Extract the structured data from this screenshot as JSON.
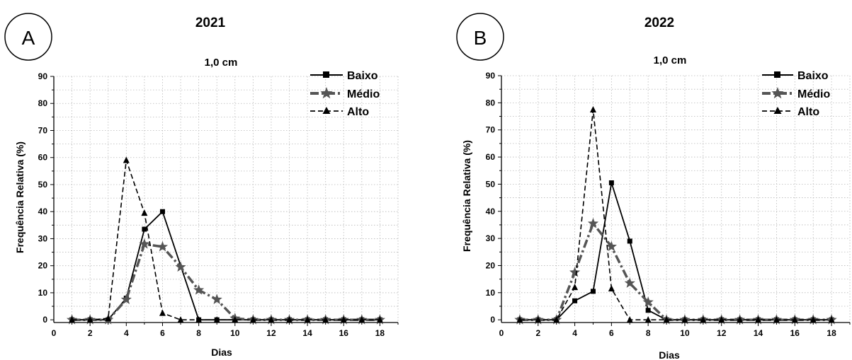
{
  "chart_data": [
    {
      "type": "line",
      "panel_letter": "A",
      "year": "2021",
      "title": "1,0 cm",
      "xlabel": "Dias",
      "ylabel": "Frequência Relativa (%)",
      "xlim": [
        0,
        19
      ],
      "ylim": [
        -1,
        90
      ],
      "xticks": [
        0,
        2,
        4,
        6,
        8,
        10,
        12,
        14,
        16,
        18
      ],
      "yticks": [
        0,
        10,
        20,
        30,
        40,
        50,
        60,
        70,
        80,
        90
      ],
      "grid": true,
      "legend_position": "top-right",
      "x": [
        1,
        2,
        3,
        4,
        5,
        6,
        7,
        8,
        9,
        10,
        11,
        12,
        13,
        14,
        15,
        16,
        17,
        18
      ],
      "series": [
        {
          "name": "Baixo",
          "color": "#000000",
          "marker": "square",
          "line_style": "solid",
          "values": [
            0,
            0,
            0,
            8,
            33.5,
            40,
            null,
            0,
            0,
            0,
            0,
            0,
            0,
            0,
            0,
            0,
            0,
            0
          ]
        },
        {
          "name": "Médio",
          "color": "#555555",
          "marker": "star",
          "line_style": "dash-dot",
          "values": [
            0,
            0,
            0,
            7.5,
            28,
            27,
            19.5,
            11,
            7.5,
            0.5,
            0,
            0,
            0,
            0,
            0,
            0,
            0,
            0
          ]
        },
        {
          "name": "Alto",
          "color": "#000000",
          "marker": "triangle",
          "line_style": "dashed",
          "values": [
            0,
            0,
            0.5,
            59,
            39.5,
            2.5,
            0,
            0,
            0,
            0,
            0,
            0,
            0,
            0,
            0,
            0,
            0,
            0
          ]
        }
      ]
    },
    {
      "type": "line",
      "panel_letter": "B",
      "year": "2022",
      "title": "1,0 cm",
      "xlabel": "Dias",
      "ylabel": "Frequência Relativa (%)",
      "xlim": [
        0,
        19
      ],
      "ylim": [
        -1,
        90
      ],
      "xticks": [
        0,
        2,
        4,
        6,
        8,
        10,
        12,
        14,
        16,
        18
      ],
      "yticks": [
        0,
        10,
        20,
        30,
        40,
        50,
        60,
        70,
        80,
        90
      ],
      "grid": true,
      "legend_position": "top-right",
      "x": [
        1,
        2,
        3,
        4,
        5,
        6,
        7,
        8,
        9,
        10,
        11,
        12,
        13,
        14,
        15,
        16,
        17,
        18
      ],
      "series": [
        {
          "name": "Baixo",
          "color": "#000000",
          "marker": "square",
          "line_style": "solid",
          "values": [
            0,
            0,
            0,
            7,
            10.5,
            50.5,
            29,
            3.5,
            0,
            0,
            0,
            0,
            0,
            0,
            0,
            0,
            0,
            0
          ]
        },
        {
          "name": "Médio",
          "color": "#555555",
          "marker": "star",
          "line_style": "dash-dot",
          "values": [
            0,
            0,
            0,
            17.5,
            35.5,
            27,
            13.5,
            6.5,
            0,
            0,
            0,
            0,
            0,
            0,
            0,
            0,
            0,
            0
          ]
        },
        {
          "name": "Alto",
          "color": "#000000",
          "marker": "triangle",
          "line_style": "dashed",
          "values": [
            0,
            0,
            0,
            12,
            77.5,
            11.5,
            0,
            0,
            0,
            0,
            0,
            0,
            0,
            0,
            0,
            0,
            0,
            0
          ]
        }
      ]
    }
  ]
}
